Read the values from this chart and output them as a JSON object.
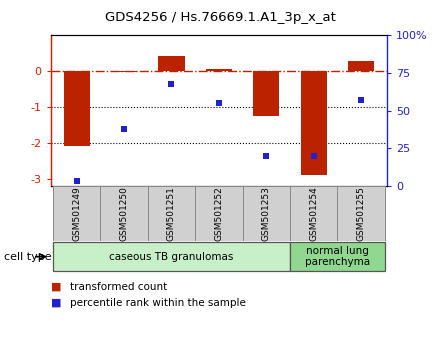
{
  "title": "GDS4256 / Hs.76669.1.A1_3p_x_at",
  "samples": [
    "GSM501249",
    "GSM501250",
    "GSM501251",
    "GSM501252",
    "GSM501253",
    "GSM501254",
    "GSM501255"
  ],
  "transformed_count": [
    -2.1,
    -0.02,
    0.42,
    0.05,
    -1.25,
    -2.9,
    0.28
  ],
  "percentile_rank": [
    3,
    38,
    68,
    55,
    20,
    20,
    57
  ],
  "bar_color": "#bb2200",
  "dot_color": "#2222cc",
  "ylim_left": [
    -3.2,
    1.0
  ],
  "ylim_right": [
    0,
    100
  ],
  "yticks_left": [
    -3,
    -2,
    -1,
    0
  ],
  "yticks_right": [
    0,
    25,
    50,
    75,
    100
  ],
  "ytick_labels_left": [
    "-3",
    "-2",
    "-1",
    "0"
  ],
  "ytick_labels_right": [
    "0",
    "25",
    "50",
    "75",
    "100%"
  ],
  "hline_y": 0,
  "dotted_lines": [
    -1,
    -2
  ],
  "cell_type_groups": [
    {
      "label": "caseous TB granulomas",
      "start": 0,
      "end": 5,
      "color": "#c8f0c8"
    },
    {
      "label": "normal lung\nparenchyma",
      "start": 5,
      "end": 7,
      "color": "#90d890"
    }
  ],
  "cell_type_label": "cell type",
  "legend_entries": [
    {
      "label": "transformed count",
      "color": "#bb2200"
    },
    {
      "label": "percentile rank within the sample",
      "color": "#2222cc"
    }
  ],
  "bar_width": 0.55,
  "background_color": "#ffffff",
  "plot_bg_color": "#ffffff",
  "axis_color_left": "#cc2200",
  "axis_color_right": "#2222cc",
  "label_box_color": "#d0d0d0",
  "label_box_edge": "#888888"
}
